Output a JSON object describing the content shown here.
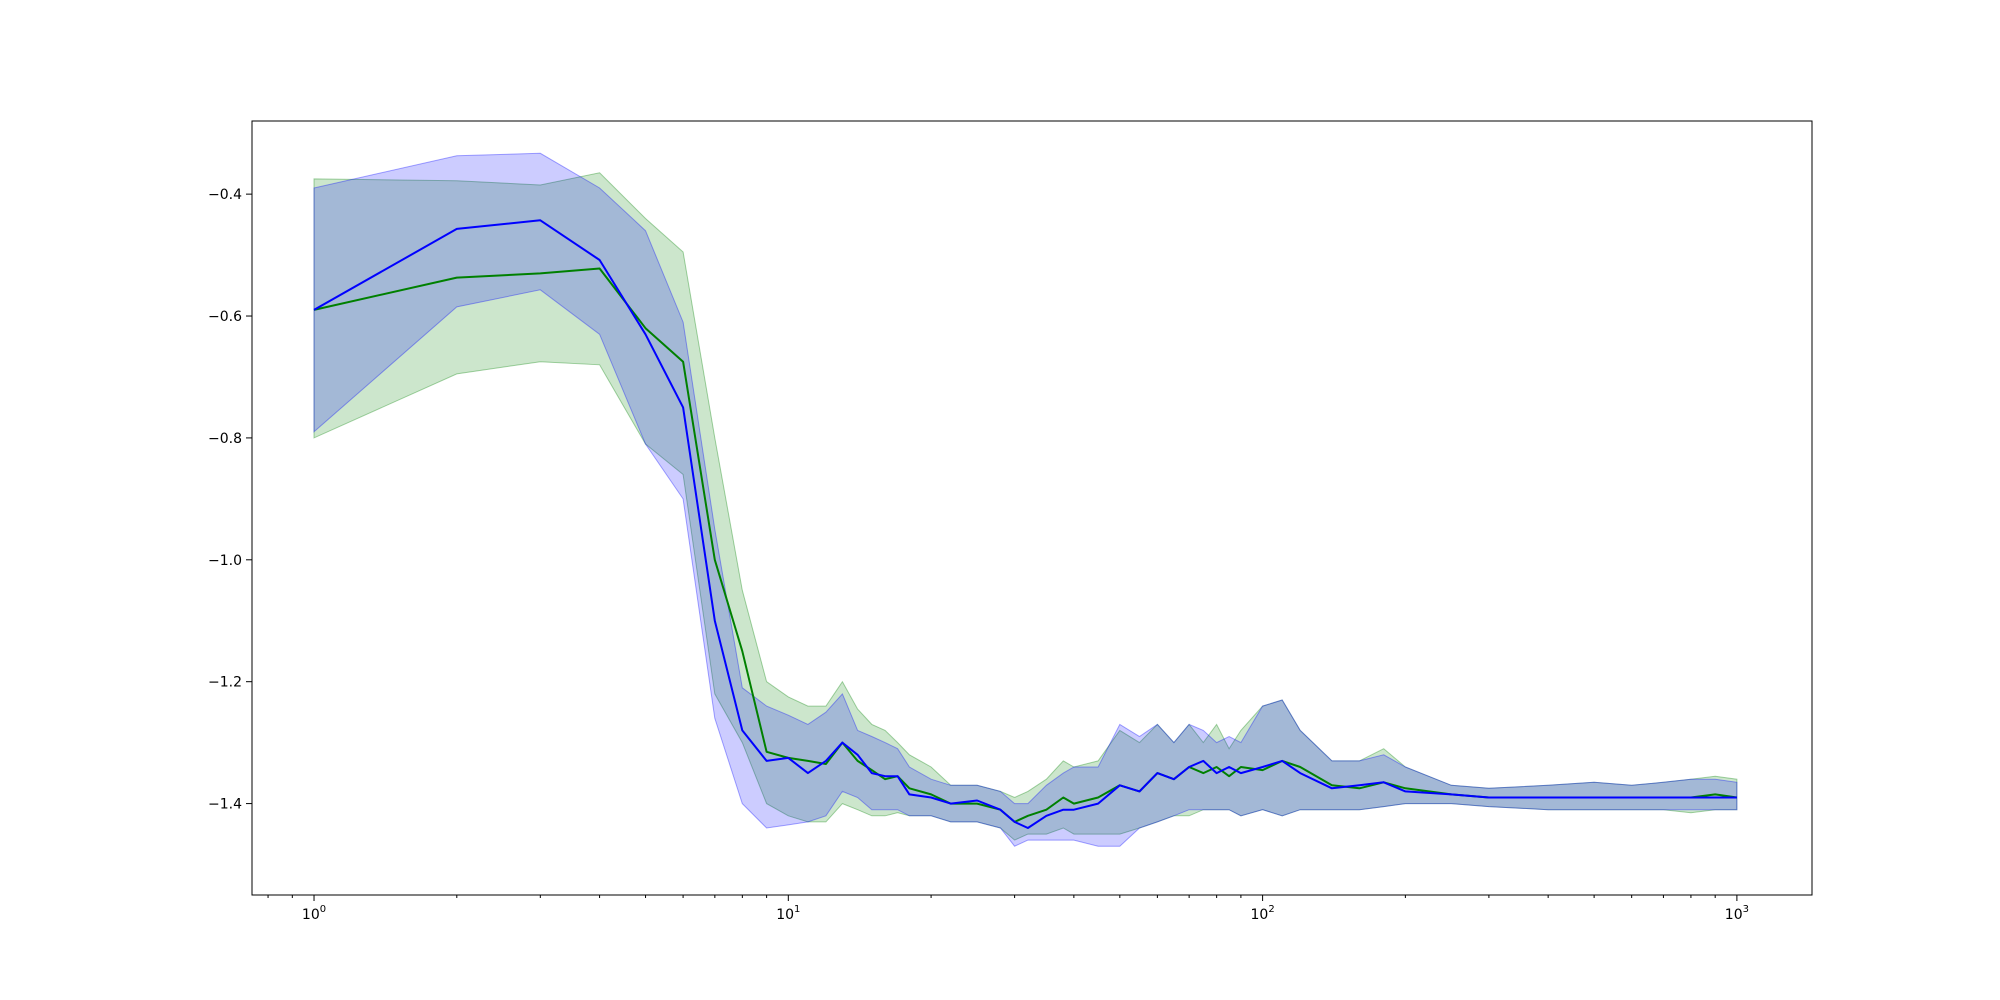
{
  "chart_data": {
    "type": "line",
    "title": "",
    "xlabel": "",
    "ylabel": "",
    "xscale": "log",
    "xlim": [
      0.74,
      1440
    ],
    "ylim": [
      -1.55,
      -0.28
    ],
    "grid": false,
    "x_ticks": [
      {
        "value": 1,
        "base": "10",
        "exp": "0"
      },
      {
        "value": 10,
        "base": "10",
        "exp": "1"
      },
      {
        "value": 100,
        "base": "10",
        "exp": "2"
      },
      {
        "value": 1000,
        "base": "10",
        "exp": "3"
      }
    ],
    "y_ticks": [
      {
        "value": -0.4,
        "label": "−0.4"
      },
      {
        "value": -0.6,
        "label": "−0.6"
      },
      {
        "value": -0.8,
        "label": "−0.8"
      },
      {
        "value": -1.0,
        "label": "−1.0"
      },
      {
        "value": -1.2,
        "label": "−1.2"
      },
      {
        "value": -1.4,
        "label": "−1.4"
      }
    ],
    "series": [
      {
        "color": "#008000",
        "band_color": "#008000",
        "band_opacity": 0.2,
        "x": [
          1,
          2,
          3,
          4,
          5,
          6,
          7,
          8,
          9,
          10,
          11,
          12,
          13,
          14,
          15,
          16,
          17,
          18,
          20,
          22,
          25,
          28,
          30,
          32,
          35,
          38,
          40,
          45,
          50,
          55,
          60,
          65,
          70,
          75,
          80,
          85,
          90,
          100,
          110,
          120,
          140,
          160,
          180,
          200,
          250,
          300,
          400,
          500,
          600,
          700,
          800,
          900,
          1000
        ],
        "y": [
          -0.59,
          -0.537,
          -0.53,
          -0.522,
          -0.62,
          -0.675,
          -1.0,
          -1.15,
          -1.315,
          -1.325,
          -1.33,
          -1.335,
          -1.3,
          -1.33,
          -1.345,
          -1.36,
          -1.355,
          -1.375,
          -1.385,
          -1.4,
          -1.4,
          -1.41,
          -1.43,
          -1.42,
          -1.41,
          -1.39,
          -1.4,
          -1.39,
          -1.37,
          -1.38,
          -1.35,
          -1.36,
          -1.34,
          -1.35,
          -1.34,
          -1.355,
          -1.34,
          -1.345,
          -1.33,
          -1.34,
          -1.37,
          -1.375,
          -1.365,
          -1.375,
          -1.385,
          -1.39,
          -1.39,
          -1.39,
          -1.39,
          -1.39,
          -1.39,
          -1.385,
          -1.39
        ],
        "upper": [
          -0.375,
          -0.378,
          -0.385,
          -0.365,
          -0.44,
          -0.495,
          -0.8,
          -1.05,
          -1.2,
          -1.225,
          -1.24,
          -1.24,
          -1.2,
          -1.245,
          -1.27,
          -1.28,
          -1.3,
          -1.32,
          -1.34,
          -1.37,
          -1.37,
          -1.38,
          -1.39,
          -1.38,
          -1.36,
          -1.33,
          -1.34,
          -1.33,
          -1.28,
          -1.3,
          -1.27,
          -1.3,
          -1.27,
          -1.3,
          -1.27,
          -1.31,
          -1.28,
          -1.24,
          -1.23,
          -1.28,
          -1.33,
          -1.33,
          -1.31,
          -1.34,
          -1.37,
          -1.375,
          -1.37,
          -1.365,
          -1.37,
          -1.365,
          -1.36,
          -1.355,
          -1.36
        ],
        "lower": [
          -0.8,
          -0.695,
          -0.675,
          -0.68,
          -0.81,
          -0.86,
          -1.22,
          -1.3,
          -1.4,
          -1.42,
          -1.43,
          -1.43,
          -1.4,
          -1.41,
          -1.42,
          -1.42,
          -1.415,
          -1.42,
          -1.42,
          -1.43,
          -1.43,
          -1.44,
          -1.46,
          -1.45,
          -1.45,
          -1.44,
          -1.45,
          -1.45,
          -1.45,
          -1.44,
          -1.43,
          -1.42,
          -1.42,
          -1.41,
          -1.41,
          -1.41,
          -1.42,
          -1.41,
          -1.42,
          -1.41,
          -1.41,
          -1.41,
          -1.405,
          -1.4,
          -1.4,
          -1.405,
          -1.41,
          -1.41,
          -1.41,
          -1.41,
          -1.415,
          -1.41,
          -1.41
        ]
      },
      {
        "color": "#0000ff",
        "band_color": "#0000ff",
        "band_opacity": 0.2,
        "x": [
          1,
          2,
          3,
          4,
          5,
          6,
          7,
          8,
          9,
          10,
          11,
          12,
          13,
          14,
          15,
          16,
          17,
          18,
          20,
          22,
          25,
          28,
          30,
          32,
          35,
          38,
          40,
          45,
          50,
          55,
          60,
          65,
          70,
          75,
          80,
          85,
          90,
          100,
          110,
          120,
          140,
          160,
          180,
          200,
          250,
          300,
          400,
          500,
          600,
          700,
          800,
          900,
          1000
        ],
        "y": [
          -0.59,
          -0.457,
          -0.443,
          -0.508,
          -0.63,
          -0.75,
          -1.1,
          -1.28,
          -1.33,
          -1.325,
          -1.35,
          -1.33,
          -1.3,
          -1.32,
          -1.35,
          -1.355,
          -1.355,
          -1.385,
          -1.39,
          -1.4,
          -1.395,
          -1.41,
          -1.43,
          -1.44,
          -1.42,
          -1.41,
          -1.41,
          -1.4,
          -1.37,
          -1.38,
          -1.35,
          -1.36,
          -1.34,
          -1.33,
          -1.35,
          -1.34,
          -1.35,
          -1.34,
          -1.33,
          -1.35,
          -1.375,
          -1.37,
          -1.365,
          -1.38,
          -1.385,
          -1.39,
          -1.39,
          -1.39,
          -1.39,
          -1.39,
          -1.39,
          -1.39,
          -1.39
        ],
        "upper": [
          -0.39,
          -0.337,
          -0.333,
          -0.39,
          -0.46,
          -0.61,
          -0.95,
          -1.21,
          -1.24,
          -1.255,
          -1.27,
          -1.25,
          -1.22,
          -1.28,
          -1.29,
          -1.3,
          -1.31,
          -1.34,
          -1.36,
          -1.37,
          -1.37,
          -1.38,
          -1.4,
          -1.4,
          -1.37,
          -1.35,
          -1.34,
          -1.34,
          -1.27,
          -1.29,
          -1.27,
          -1.3,
          -1.27,
          -1.28,
          -1.3,
          -1.29,
          -1.3,
          -1.24,
          -1.23,
          -1.28,
          -1.33,
          -1.33,
          -1.32,
          -1.34,
          -1.37,
          -1.375,
          -1.37,
          -1.365,
          -1.37,
          -1.365,
          -1.36,
          -1.36,
          -1.365
        ],
        "lower": [
          -0.79,
          -0.585,
          -0.557,
          -0.63,
          -0.81,
          -0.9,
          -1.26,
          -1.4,
          -1.44,
          -1.435,
          -1.43,
          -1.42,
          -1.38,
          -1.39,
          -1.41,
          -1.41,
          -1.41,
          -1.42,
          -1.42,
          -1.43,
          -1.43,
          -1.44,
          -1.47,
          -1.46,
          -1.46,
          -1.46,
          -1.46,
          -1.47,
          -1.47,
          -1.44,
          -1.43,
          -1.42,
          -1.41,
          -1.41,
          -1.41,
          -1.41,
          -1.42,
          -1.41,
          -1.42,
          -1.41,
          -1.41,
          -1.41,
          -1.405,
          -1.4,
          -1.4,
          -1.405,
          -1.41,
          -1.41,
          -1.41,
          -1.41,
          -1.41,
          -1.41,
          -1.41
        ]
      }
    ]
  }
}
